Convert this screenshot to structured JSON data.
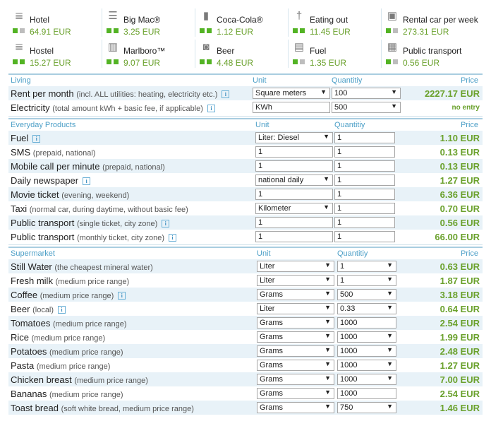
{
  "summary": [
    {
      "icon": "bed-icon",
      "glyph": "≣",
      "label": "Hotel",
      "value": "64.91 EUR",
      "dots": [
        "green",
        "grey"
      ]
    },
    {
      "icon": "burger-icon",
      "glyph": "☰",
      "label": "Big Mac®",
      "value": "3.25 EUR",
      "dots": [
        "green",
        "green"
      ]
    },
    {
      "icon": "bottle-icon",
      "glyph": "▮",
      "label": "Coca-Cola®",
      "value": "1.12 EUR",
      "dots": [
        "green",
        "green"
      ]
    },
    {
      "icon": "cutlery-icon",
      "glyph": "†",
      "label": "Eating out",
      "value": "11.45 EUR",
      "dots": [
        "green",
        "green"
      ]
    },
    {
      "icon": "car-icon",
      "glyph": "▣",
      "label": "Rental car per week",
      "value": "273.31 EUR",
      "dots": [
        "green",
        "grey"
      ]
    },
    {
      "icon": "bed-icon",
      "glyph": "≣",
      "label": "Hostel",
      "value": "15.27 EUR",
      "dots": [
        "green",
        "green"
      ]
    },
    {
      "icon": "cigarettes-icon",
      "glyph": "▥",
      "label": "Marlboro™",
      "value": "9.07 EUR",
      "dots": [
        "green",
        "green"
      ]
    },
    {
      "icon": "beer-mug-icon",
      "glyph": "◙",
      "label": "Beer",
      "value": "4.48 EUR",
      "dots": [
        "green",
        "green"
      ]
    },
    {
      "icon": "fuel-pump-icon",
      "glyph": "▤",
      "label": "Fuel",
      "value": "1.35 EUR",
      "dots": [
        "green",
        "grey"
      ]
    },
    {
      "icon": "bus-icon",
      "glyph": "▦",
      "label": "Public transport",
      "value": "0.56 EUR",
      "dots": [
        "green",
        "grey"
      ]
    }
  ],
  "living": {
    "title": "Living",
    "unit_header": "Unit",
    "qty_header": "Quantitiy",
    "price_header": "Price",
    "rows": [
      {
        "name": "Rent per month",
        "note": "(incl. ALL utilities: heating, electricity etc.)",
        "info": true,
        "unit": "Square meters",
        "unit_dd": true,
        "qty": "100",
        "qty_dd": true,
        "price": "2227.17 EUR"
      },
      {
        "name": "Electricity",
        "note": "(total amount kWh + basic fee, if applicable)",
        "info": true,
        "unit": "KWh",
        "unit_dd": false,
        "qty": "500",
        "qty_dd": true,
        "price": "no entry",
        "small": true
      }
    ]
  },
  "everyday": {
    "title": "Everyday Products",
    "unit_header": "Unit",
    "qty_header": "Quantitiy",
    "price_header": "Price",
    "rows": [
      {
        "name": "Fuel",
        "note": "",
        "info": true,
        "unit": "Liter: Diesel",
        "unit_dd": true,
        "qty": "1",
        "price": "1.10 EUR"
      },
      {
        "name": "SMS",
        "note": "(prepaid, national)",
        "info": false,
        "unit": "1",
        "unit_dd": false,
        "qty": "1",
        "price": "0.13 EUR"
      },
      {
        "name": "Mobile call per minute",
        "note": "(prepaid, national)",
        "info": false,
        "unit": "1",
        "unit_dd": false,
        "qty": "1",
        "price": "0.13 EUR"
      },
      {
        "name": "Daily newspaper",
        "note": "",
        "info": true,
        "unit": "national daily",
        "unit_dd": true,
        "qty": "1",
        "price": "1.27 EUR"
      },
      {
        "name": "Movie ticket",
        "note": "(evening, weekend)",
        "info": false,
        "unit": "1",
        "unit_dd": false,
        "qty": "1",
        "price": "6.36 EUR"
      },
      {
        "name": "Taxi",
        "note": "(normal car, during daytime, without basic fee)",
        "info": false,
        "unit": "Kilometer",
        "unit_dd": true,
        "qty": "1",
        "price": "0.70 EUR"
      },
      {
        "name": "Public transport",
        "note": "(single ticket, city zone)",
        "info": true,
        "unit": "1",
        "unit_dd": false,
        "qty": "1",
        "price": "0.56 EUR"
      },
      {
        "name": "Public transport",
        "note": "(monthly ticket, city zone)",
        "info": true,
        "unit": "1",
        "unit_dd": false,
        "qty": "1",
        "price": "66.00 EUR"
      }
    ]
  },
  "supermarket": {
    "title": "Supermarket",
    "unit_header": "Unit",
    "qty_header": "Quantitiy",
    "price_header": "Price",
    "rows": [
      {
        "name": "Still Water",
        "note": "(the cheapest mineral water)",
        "info": false,
        "unit": "Liter",
        "qty": "1",
        "qty_dd": true,
        "price": "0.63 EUR"
      },
      {
        "name": "Fresh milk",
        "note": "(medium price range)",
        "info": false,
        "unit": "Liter",
        "qty": "1",
        "qty_dd": true,
        "price": "1.87 EUR"
      },
      {
        "name": "Coffee",
        "note": "(medium price range)",
        "info": true,
        "unit": "Grams",
        "qty": "500",
        "qty_dd": true,
        "price": "3.18 EUR"
      },
      {
        "name": "Beer",
        "note": "(local)",
        "info": true,
        "unit": "Liter",
        "qty": "0.33",
        "qty_dd": true,
        "price": "0.64 EUR"
      },
      {
        "name": "Tomatoes",
        "note": "(medium price range)",
        "info": false,
        "unit": "Grams",
        "qty": "1000",
        "qty_dd": false,
        "price": "2.54 EUR"
      },
      {
        "name": "Rice",
        "note": "(medium price range)",
        "info": false,
        "unit": "Grams",
        "qty": "1000",
        "qty_dd": true,
        "price": "1.99 EUR"
      },
      {
        "name": "Potatoes",
        "note": "(medium price range)",
        "info": false,
        "unit": "Grams",
        "qty": "1000",
        "qty_dd": true,
        "price": "2.48 EUR"
      },
      {
        "name": "Pasta",
        "note": "(medium price range)",
        "info": false,
        "unit": "Grams",
        "qty": "1000",
        "qty_dd": true,
        "price": "1.27 EUR"
      },
      {
        "name": "Chicken breast",
        "note": "(medium price range)",
        "info": false,
        "unit": "Grams",
        "qty": "1000",
        "qty_dd": true,
        "price": "7.00 EUR"
      },
      {
        "name": "Bananas",
        "note": "(medium price range)",
        "info": false,
        "unit": "Grams",
        "qty": "1000",
        "qty_dd": false,
        "price": "2.54 EUR"
      },
      {
        "name": "Toast bread",
        "note": "(soft white bread, medium price range)",
        "info": false,
        "unit": "Grams",
        "qty": "750",
        "qty_dd": true,
        "price": "1.46 EUR"
      }
    ]
  }
}
